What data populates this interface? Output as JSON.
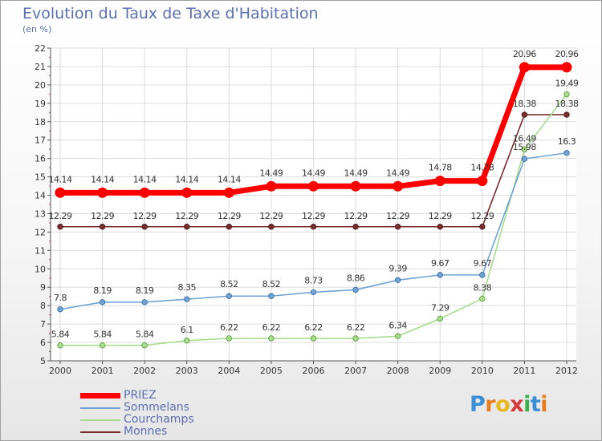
{
  "title": "Evolution du Taux de Taxe d'Habitation",
  "subtitle": "(en %)",
  "chart_data": {
    "type": "line",
    "x": [
      "2000",
      "2001",
      "2002",
      "2003",
      "2004",
      "2005",
      "2006",
      "2007",
      "2008",
      "2009",
      "2010",
      "2011",
      "2012"
    ],
    "ylim": [
      5,
      22
    ],
    "yticks": [
      "5",
      "6",
      "7",
      "8",
      "9",
      "10",
      "11",
      "12",
      "13",
      "14",
      "15",
      "16",
      "17",
      "18",
      "19",
      "20",
      "21",
      "22"
    ],
    "grid": true,
    "legend_position": "bottom-left",
    "series": [
      {
        "name": "PRIEZ",
        "color": "#ff0000",
        "values": [
          14.14,
          14.14,
          14.14,
          14.14,
          14.14,
          14.49,
          14.49,
          14.49,
          14.49,
          14.78,
          14.78,
          20.96,
          20.96
        ],
        "labels": [
          "14.14",
          "14.14",
          "14.14",
          "14.14",
          "14.14",
          "14.49",
          "14.49",
          "14.49",
          "14.49",
          "14.78",
          "14.78",
          "20.96",
          "20.96"
        ]
      },
      {
        "name": "Sommelans",
        "color": "#6fa3d6",
        "values": [
          7.8,
          8.19,
          8.19,
          8.35,
          8.52,
          8.52,
          8.73,
          8.86,
          9.39,
          9.67,
          9.67,
          15.98,
          16.3
        ],
        "labels": [
          "7.8",
          "8.19",
          "8.19",
          "8.35",
          "8.52",
          "8.52",
          "8.73",
          "8.86",
          "9.39",
          "9.67",
          "9.67",
          "15.98",
          "16.3"
        ]
      },
      {
        "name": "Courchamps",
        "color": "#a6dc8c",
        "values": [
          5.84,
          5.84,
          5.84,
          6.1,
          6.22,
          6.22,
          6.22,
          6.22,
          6.34,
          7.29,
          8.38,
          16.49,
          19.49
        ],
        "labels": [
          "5.84",
          "5.84",
          "5.84",
          "6.1",
          "6.22",
          "6.22",
          "6.22",
          "6.22",
          "6.34",
          "7.29",
          "8.38",
          "16.49",
          "19.49"
        ]
      },
      {
        "name": "Monnes",
        "color": "#7a2e2e",
        "values": [
          12.29,
          12.29,
          12.29,
          12.29,
          12.29,
          12.29,
          12.29,
          12.29,
          12.29,
          12.29,
          12.29,
          18.38,
          18.38
        ],
        "labels": [
          "12.29",
          "12.29",
          "12.29",
          "12.29",
          "12.29",
          "12.29",
          "12.29",
          "12.29",
          "12.29",
          "12.29",
          "12.29",
          "18.38",
          "18.38"
        ]
      }
    ]
  },
  "logo": {
    "letters": [
      "P",
      "r",
      "o",
      "x",
      "i",
      "t",
      "i"
    ],
    "colors": [
      "#3a8fd6",
      "#e87d1e",
      "#e8b81e",
      "#d63a3a",
      "#3ab04a",
      "#3a8fd6",
      "#e87d1e"
    ]
  }
}
